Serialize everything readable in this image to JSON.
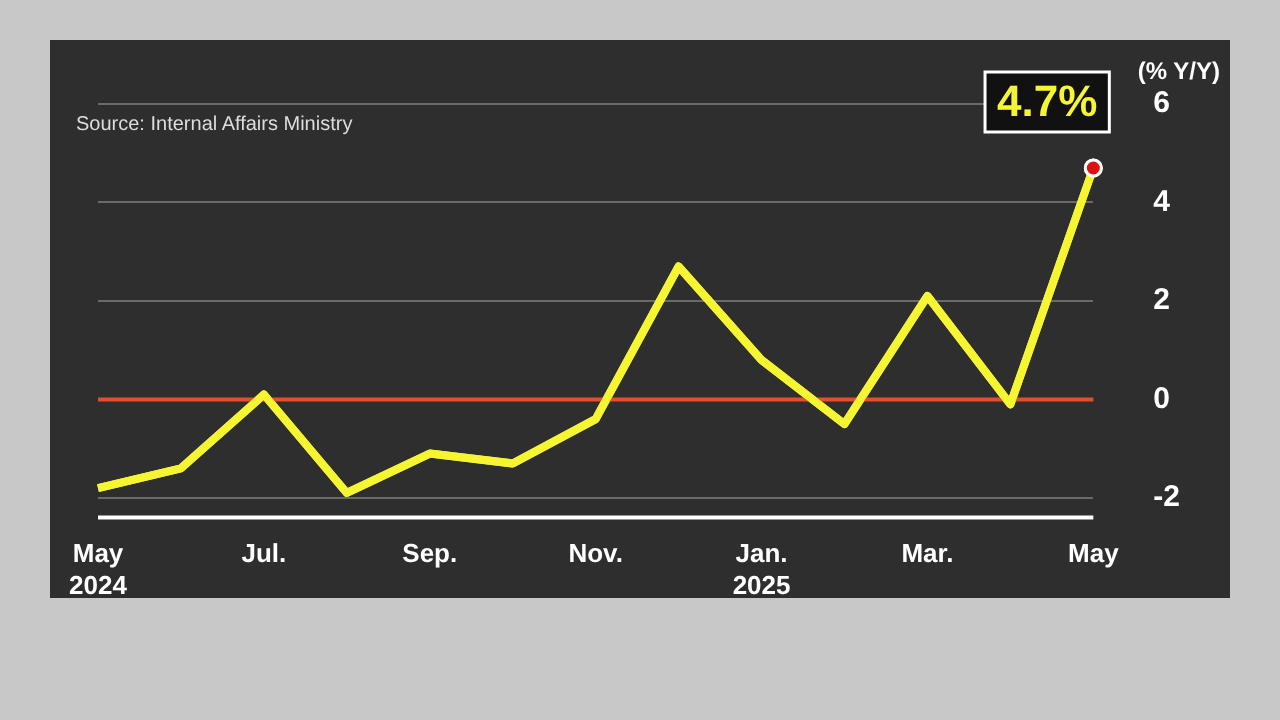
{
  "chart_data": {
    "type": "line",
    "ylabel": "(% Y/Y)",
    "annotations": [
      "Source: Internal Affairs Ministry"
    ],
    "categories": [
      "May\n2024",
      null,
      "Jul.",
      null,
      "Sep.",
      null,
      "Nov.",
      null,
      "Jan.\n2025",
      null,
      "Mar.",
      null,
      "May"
    ],
    "series": [
      {
        "color": "#f5f532",
        "values": [
          -1.8,
          -1.4,
          0.1,
          -1.9,
          -1.1,
          -1.3,
          -0.4,
          2.7,
          0.8,
          -0.5,
          2.1,
          -0.1,
          4.7
        ],
        "value_labels": [
          null,
          null,
          null,
          null,
          null,
          null,
          null,
          null,
          null,
          null,
          null,
          null,
          "4.7%"
        ]
      }
    ],
    "ylim": [
      -2.4,
      6
    ],
    "yticks": [
      -2,
      0,
      2,
      4,
      6
    ],
    "grid": "y",
    "legend": false,
    "ref_lines": [
      {
        "axis": "y",
        "value": 0,
        "color": "#e0502a"
      }
    ]
  }
}
